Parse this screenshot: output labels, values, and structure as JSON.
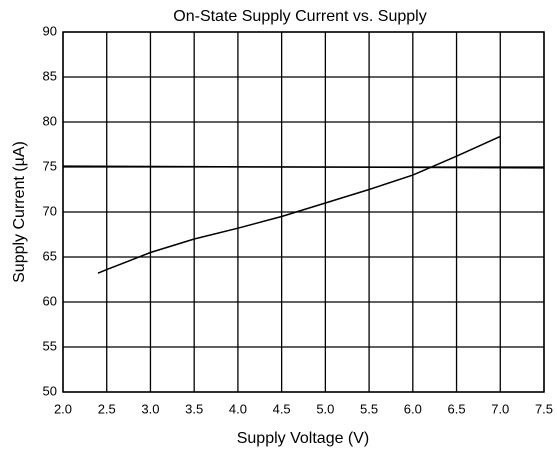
{
  "chart_data": {
    "type": "line",
    "title": "On-State Supply Current vs. Supply",
    "xlabel": "Supply Voltage (V)",
    "ylabel": "Supply Current (µA)",
    "series": [
      {
        "color": "#000000",
        "x": [
          2.4,
          2.5,
          3.0,
          3.5,
          4.0,
          4.5,
          5.0,
          5.5,
          6.0,
          6.5,
          7.0
        ],
        "values": [
          63.2,
          63.6,
          65.5,
          67.0,
          68.2,
          69.5,
          71.0,
          72.5,
          74.1,
          76.2,
          78.4
        ]
      },
      {
        "color": "#000000",
        "x": [
          2.0,
          7.5
        ],
        "values": [
          75.1,
          74.9
        ]
      }
    ],
    "xlim": [
      2.0,
      7.5
    ],
    "xticks": [
      {
        "value": 2.0,
        "label": "2.0"
      },
      {
        "value": 2.5,
        "label": "2.5"
      },
      {
        "value": 3.0,
        "label": "3.0"
      },
      {
        "value": 3.5,
        "label": "3.5"
      },
      {
        "value": 4.0,
        "label": "4.0"
      },
      {
        "value": 4.5,
        "label": "4.5"
      },
      {
        "value": 5.0,
        "label": "5.0"
      },
      {
        "value": 5.5,
        "label": "5.5"
      },
      {
        "value": 6.0,
        "label": "6.0"
      },
      {
        "value": 6.5,
        "label": "6.5"
      },
      {
        "value": 7.0,
        "label": "7.0"
      },
      {
        "value": 7.5,
        "label": "7.5"
      }
    ],
    "ylim": [
      50,
      90
    ],
    "yticks": [
      50,
      55,
      60,
      65,
      70,
      75,
      80,
      85,
      90
    ],
    "grid": true
  }
}
